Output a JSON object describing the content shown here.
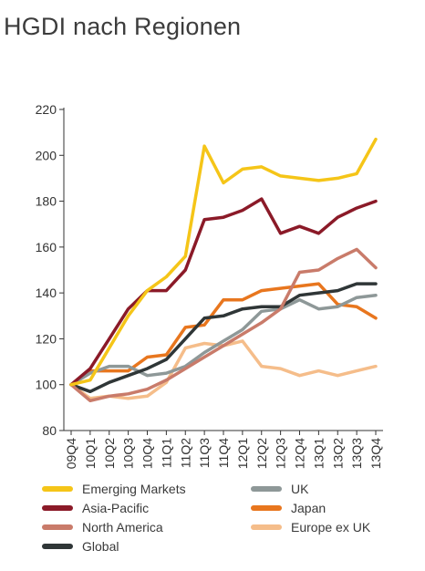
{
  "title": "HGDI nach Regionen",
  "chart_data": {
    "type": "line",
    "title": "HGDI nach Regionen",
    "xlabel": "",
    "ylabel": "",
    "ylim": [
      80,
      220
    ],
    "yticks": [
      80,
      100,
      120,
      140,
      160,
      180,
      200,
      220
    ],
    "grid": false,
    "legend_position": "bottom",
    "categories": [
      "09Q4",
      "10Q1",
      "10Q2",
      "10Q3",
      "10Q4",
      "11Q1",
      "11Q2",
      "11Q3",
      "11Q4",
      "12Q1",
      "12Q2",
      "12Q3",
      "12Q4",
      "13Q1",
      "13Q2",
      "13Q3",
      "13Q4"
    ],
    "series": [
      {
        "name": "Emerging Markets",
        "color": "#f5c518",
        "values": [
          100,
          102,
          116,
          130,
          141,
          147,
          156,
          204,
          188,
          194,
          195,
          191,
          190,
          189,
          190,
          192,
          207
        ]
      },
      {
        "name": "Asia-Pacific",
        "color": "#8b1a28",
        "values": [
          100,
          107,
          120,
          133,
          141,
          141,
          150,
          172,
          173,
          176,
          181,
          166,
          169,
          166,
          173,
          177,
          180
        ]
      },
      {
        "name": "North America",
        "color": "#c97b6a",
        "values": [
          100,
          93,
          95,
          96,
          98,
          102,
          107,
          112,
          117,
          122,
          127,
          133,
          149,
          150,
          155,
          159,
          151
        ]
      },
      {
        "name": "Global",
        "color": "#2f3637",
        "values": [
          100,
          97,
          101,
          104,
          107,
          111,
          120,
          129,
          130,
          133,
          134,
          134,
          139,
          140,
          141,
          144,
          144
        ]
      },
      {
        "name": "UK",
        "color": "#8e9898",
        "values": [
          100,
          105,
          108,
          108,
          104,
          105,
          108,
          114,
          119,
          124,
          132,
          133,
          137,
          133,
          134,
          138,
          139
        ]
      },
      {
        "name": "Japan",
        "color": "#e8761e",
        "values": [
          100,
          106,
          106,
          106,
          112,
          113,
          125,
          126,
          137,
          137,
          141,
          142,
          143,
          144,
          135,
          134,
          129
        ]
      },
      {
        "name": "Europe ex UK",
        "color": "#f5bd8a",
        "values": [
          100,
          94,
          95,
          94,
          95,
          101,
          116,
          118,
          117,
          119,
          108,
          107,
          104,
          106,
          104,
          106,
          108
        ]
      }
    ],
    "legend_order": [
      "Emerging Markets",
      "UK",
      "Asia-Pacific",
      "Japan",
      "North America",
      "Europe ex UK",
      "Global"
    ]
  }
}
